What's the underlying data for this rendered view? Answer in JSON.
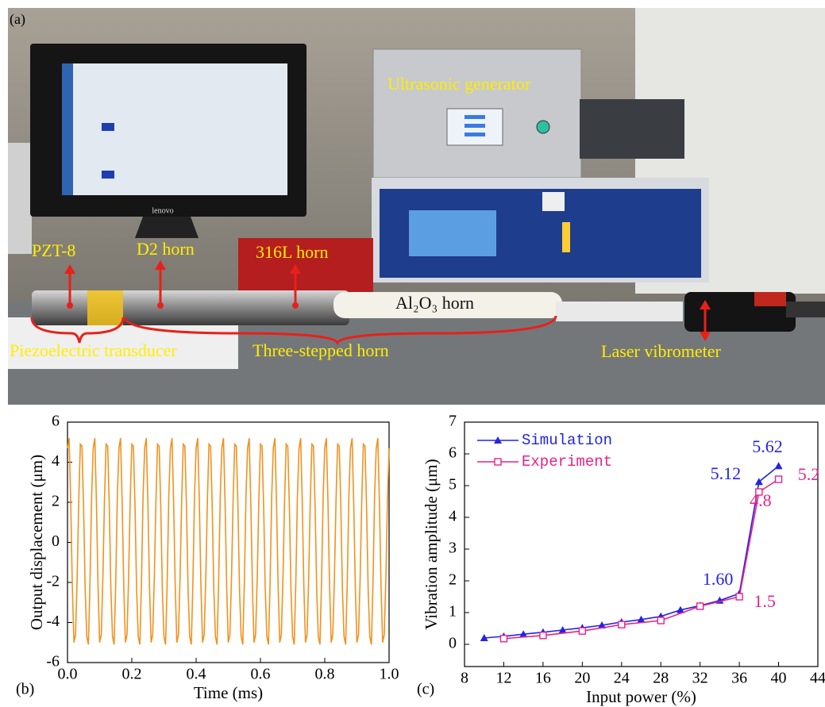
{
  "photo": {
    "panel_label": "(a)",
    "brand": "lenovo",
    "generator": "Ultrasonic generator",
    "pzt": "PZT-8",
    "d2": "D2 horn",
    "s316": "316L horn",
    "al2o3": "Al₂O₃ horn",
    "transducer": "Piezoelectric transducer",
    "stepped": "Three-stepped horn",
    "laser": "Laser vibrometer"
  },
  "chart_data": [
    {
      "type": "line",
      "panel_label": "(b)",
      "xlabel": "Time (ms)",
      "ylabel": "Output displacement (μm)",
      "color": "#f0921e",
      "xlim": [
        0,
        1
      ],
      "xticks": [
        {
          "value": 0,
          "label": "0.0"
        },
        0.2,
        0.4,
        0.6,
        0.8,
        {
          "value": 1,
          "label": "1.0"
        }
      ],
      "ylim": [
        -6,
        6
      ],
      "yticks": [
        -6,
        -4,
        -2,
        0,
        2,
        4,
        6
      ],
      "x": [
        0,
        0.005,
        0.01,
        0.015,
        0.02,
        0.025,
        0.03,
        0.035,
        0.04,
        0.045,
        0.05,
        0.055,
        0.06,
        0.065,
        0.07,
        0.075,
        0.08,
        0.085,
        0.09,
        0.095,
        0.1,
        0.105,
        0.11,
        0.115,
        0.12,
        0.125,
        0.13,
        0.135,
        0.14,
        0.145,
        0.15,
        0.155,
        0.16,
        0.165,
        0.17,
        0.175,
        0.18,
        0.185,
        0.19,
        0.195,
        0.2,
        0.205,
        0.21,
        0.215,
        0.22,
        0.225,
        0.23,
        0.235,
        0.24,
        0.245,
        0.25,
        0.255,
        0.26,
        0.265,
        0.27,
        0.275,
        0.28,
        0.285,
        0.29,
        0.295,
        0.3,
        0.305,
        0.31,
        0.315,
        0.32,
        0.325,
        0.33,
        0.335,
        0.34,
        0.345,
        0.35,
        0.355,
        0.36,
        0.365,
        0.37,
        0.375,
        0.38,
        0.385,
        0.39,
        0.395,
        0.4,
        0.405,
        0.41,
        0.415,
        0.42,
        0.425,
        0.43,
        0.435,
        0.44,
        0.445,
        0.45,
        0.455,
        0.46,
        0.465,
        0.47,
        0.475,
        0.48,
        0.485,
        0.49,
        0.495,
        0.5,
        0.505,
        0.51,
        0.515,
        0.52,
        0.525,
        0.53,
        0.535,
        0.54,
        0.545,
        0.55,
        0.555,
        0.56,
        0.565,
        0.57,
        0.575,
        0.58,
        0.585,
        0.59,
        0.595,
        0.6,
        0.605,
        0.61,
        0.615,
        0.62,
        0.625,
        0.63,
        0.635,
        0.64,
        0.645,
        0.65,
        0.655,
        0.66,
        0.665,
        0.67,
        0.675,
        0.68,
        0.685,
        0.69,
        0.695,
        0.7,
        0.705,
        0.71,
        0.715,
        0.72,
        0.725,
        0.73,
        0.735,
        0.74,
        0.745,
        0.75,
        0.755,
        0.76,
        0.765,
        0.77,
        0.775,
        0.78,
        0.785,
        0.79,
        0.795,
        0.8,
        0.805,
        0.81,
        0.815,
        0.82,
        0.825,
        0.83,
        0.835,
        0.84,
        0.845,
        0.85,
        0.855,
        0.86,
        0.865,
        0.87,
        0.875,
        0.88,
        0.885,
        0.89,
        0.895,
        0.9,
        0.905,
        0.91,
        0.915,
        0.92,
        0.925,
        0.93,
        0.935,
        0.94,
        0.945,
        0.95,
        0.955,
        0.96,
        0.965,
        0.97,
        0.975,
        0.98,
        0.985,
        0.99,
        0.995,
        1
      ],
      "values": [
        4.7,
        5.2,
        2.0,
        -2.2,
        -5.0,
        -4.6,
        -1.8,
        2.1,
        4.9,
        4.8,
        1.8,
        -2.4,
        -4.7,
        -5.1,
        -2.0,
        2.3,
        4.7,
        5.2,
        2.0,
        -2.2,
        -5.0,
        -4.6,
        -1.8,
        2.1,
        4.9,
        4.8,
        1.8,
        -2.4,
        -4.7,
        -5.1,
        -2.0,
        2.3,
        4.7,
        5.2,
        2.0,
        -2.2,
        -5.0,
        -4.6,
        -1.8,
        2.1,
        4.9,
        4.8,
        1.8,
        -2.4,
        -4.7,
        -5.1,
        -2.0,
        2.3,
        4.7,
        5.2,
        2.0,
        -2.2,
        -5.0,
        -4.6,
        -1.8,
        2.1,
        4.9,
        4.8,
        1.8,
        -2.4,
        -4.7,
        -5.1,
        -2.0,
        2.3,
        4.7,
        5.2,
        2.0,
        -2.2,
        -5.0,
        -4.6,
        -1.8,
        2.1,
        4.9,
        4.8,
        1.8,
        -2.4,
        -4.7,
        -5.1,
        -2.0,
        2.3,
        4.7,
        5.2,
        2.0,
        -2.2,
        -5.0,
        -4.6,
        -1.8,
        2.1,
        4.9,
        4.8,
        1.8,
        -2.4,
        -4.7,
        -5.1,
        -2.0,
        2.3,
        4.7,
        5.2,
        2.0,
        -2.2,
        -5.0,
        -4.6,
        -1.8,
        2.1,
        4.9,
        4.8,
        1.8,
        -2.4,
        -4.7,
        -5.1,
        -2.0,
        2.3,
        4.7,
        5.2,
        2.0,
        -2.2,
        -5.0,
        -4.6,
        -1.8,
        2.1,
        4.9,
        4.8,
        1.8,
        -2.4,
        -4.7,
        -5.1,
        -2.0,
        2.3,
        4.7,
        5.2,
        2.0,
        -2.2,
        -5.0,
        -4.6,
        -1.8,
        2.1,
        4.9,
        4.8,
        1.8,
        -2.4,
        -4.7,
        -5.1,
        -2.0,
        2.3,
        4.7,
        5.2,
        2.0,
        -2.2,
        -5.0,
        -4.6,
        -1.8,
        2.1,
        4.9,
        4.8,
        1.8,
        -2.4,
        -4.7,
        -5.1,
        -2.0,
        2.3,
        4.7,
        5.2,
        2.0,
        -2.2,
        -5.0,
        -4.6,
        -1.8,
        2.1,
        4.9,
        4.8,
        1.8,
        -2.4,
        -4.7,
        -5.1,
        -2.0,
        2.3,
        4.7,
        5.2,
        2.0,
        -2.2,
        -5.0,
        -4.6,
        -1.8,
        2.1,
        4.9,
        4.8,
        1.8,
        -2.4,
        -4.7,
        -5.1,
        -2.0,
        2.3,
        4.7,
        5.2,
        2.0,
        -2.2,
        -5.0,
        -4.6,
        -1.8,
        2.1,
        4.7
      ]
    },
    {
      "type": "line",
      "panel_label": "(c)",
      "xlabel": "Input power (%)",
      "ylabel": "Vibration amplitude (μm)",
      "xlim": [
        8,
        44
      ],
      "xticks": [
        8,
        12,
        16,
        20,
        24,
        28,
        32,
        36,
        40,
        44
      ],
      "ylim": [
        -0.7,
        7
      ],
      "yticks": [
        0,
        1,
        2,
        3,
        4,
        5,
        6,
        7
      ],
      "legend": "upper left",
      "series": [
        {
          "name": "Simulation",
          "color": "#2323e6",
          "marker": "triangle",
          "x": [
            10,
            12,
            14,
            16,
            18,
            20,
            22,
            24,
            26,
            28,
            30,
            32,
            34,
            36,
            38,
            40
          ],
          "values": [
            0.2,
            0.25,
            0.32,
            0.38,
            0.45,
            0.52,
            0.6,
            0.7,
            0.78,
            0.88,
            1.08,
            1.22,
            1.38,
            1.6,
            5.12,
            5.62
          ],
          "value_labels": [
            null,
            null,
            null,
            null,
            null,
            null,
            null,
            null,
            null,
            null,
            null,
            null,
            null,
            "1.60",
            "5.12",
            "5.62"
          ]
        },
        {
          "name": "Experiment",
          "color": "#e8218a",
          "marker": "square",
          "x": [
            12,
            16,
            20,
            24,
            28,
            32,
            36,
            38,
            40
          ],
          "values": [
            0.18,
            0.28,
            0.42,
            0.62,
            0.75,
            1.2,
            1.5,
            4.8,
            5.2
          ],
          "value_labels": [
            null,
            null,
            null,
            null,
            null,
            null,
            "1.5",
            "4.8",
            "5.2"
          ]
        }
      ]
    }
  ]
}
